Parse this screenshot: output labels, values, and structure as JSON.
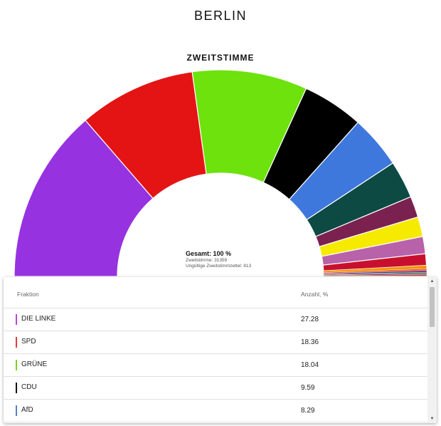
{
  "page": {
    "title": "BERLIN"
  },
  "chart_data": {
    "type": "pie",
    "subtype": "semicircle-donut",
    "title": "ZWEITSTIMME",
    "center": {
      "total": "Gesamt: 100 %",
      "votes": "Zweitstimme: 31359",
      "invalid": "Ungültige Zweitstimmzettel: 813"
    },
    "series": [
      {
        "name": "DIE LINKE",
        "value": 27.28,
        "color": "#9632e0"
      },
      {
        "name": "SPD",
        "value": 18.36,
        "color": "#e41414"
      },
      {
        "name": "GRÜNE",
        "value": 18.04,
        "color": "#6de20c"
      },
      {
        "name": "CDU",
        "value": 9.59,
        "color": "#000000"
      },
      {
        "name": "AfD",
        "value": 8.29,
        "color": "#3e78dc"
      },
      {
        "value": 5.9,
        "color": "#0d4a44"
      },
      {
        "value": 3.3,
        "color": "#7b2150"
      },
      {
        "value": 3.1,
        "color": "#f5ea00"
      },
      {
        "value": 2.7,
        "color": "#b862aa"
      },
      {
        "value": 1.8,
        "color": "#c8102e"
      },
      {
        "value": 0.5,
        "color": "#f29400"
      },
      {
        "value": 0.3,
        "color": "#e85c1a"
      },
      {
        "value": 0.25,
        "color": "#6a1b9a"
      },
      {
        "value": 0.2,
        "color": "#0f7a3a"
      },
      {
        "value": 0.2,
        "color": "#d81b60"
      },
      {
        "value": 0.15,
        "color": "#2d2d2d"
      },
      {
        "value": 0.1,
        "color": "#f5a623"
      }
    ]
  },
  "table": {
    "headers": {
      "party": "Fraktion",
      "share": "Anzahl, %"
    },
    "rows": [
      {
        "name": "DIE LINKE",
        "value": "27.28",
        "color": "#b44ad6"
      },
      {
        "name": "SPD",
        "value": "18.36",
        "color": "#e23b3b"
      },
      {
        "name": "GRÜNE",
        "value": "18.04",
        "color": "#7ad61e"
      },
      {
        "name": "CDU",
        "value": "9.59",
        "color": "#111111"
      },
      {
        "name": "AfD",
        "value": "8.29",
        "color": "#5a7fc8"
      }
    ]
  },
  "scrollbar": {
    "up_icon": "arrow-up-icon",
    "down_icon": "arrow-down-icon"
  }
}
